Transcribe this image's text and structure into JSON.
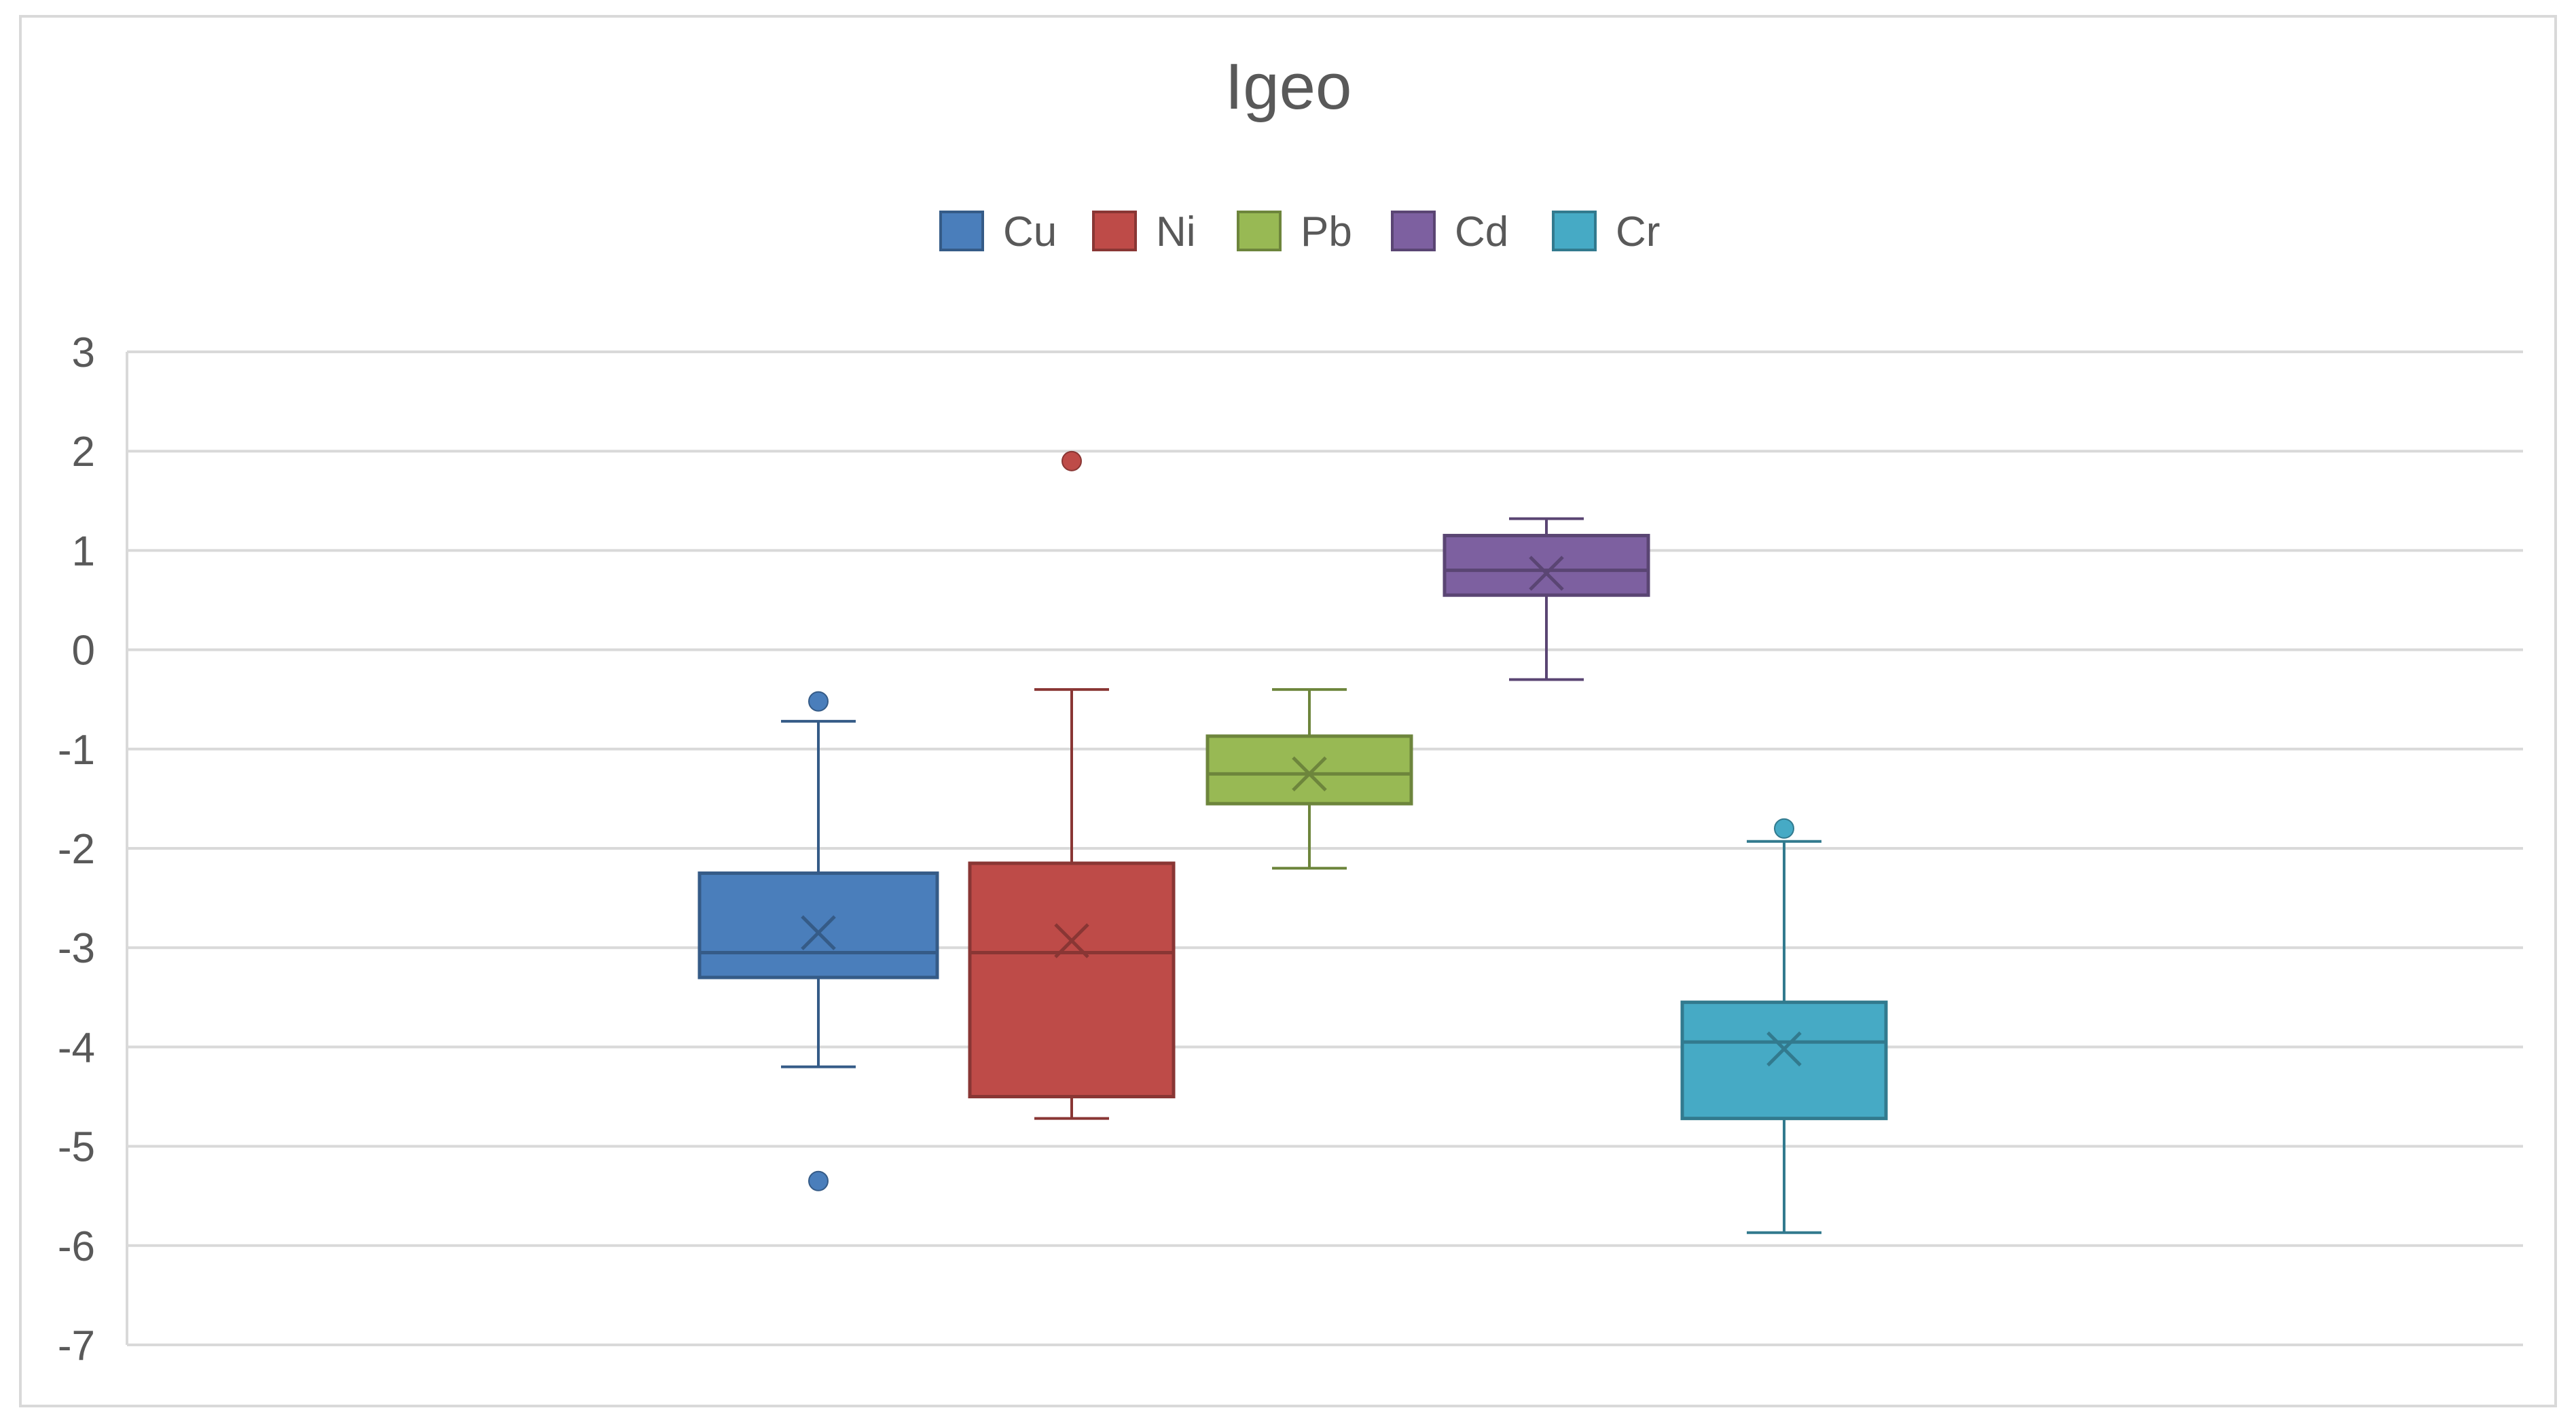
{
  "chart_data": {
    "type": "box",
    "title": "Igeo",
    "xlabel": "",
    "ylabel": "",
    "ylim": [
      -7,
      3
    ],
    "yticks": [
      "3",
      "2",
      "1",
      "0",
      "-1",
      "-2",
      "-3",
      "-4",
      "-5",
      "-6",
      "-7"
    ],
    "grid": true,
    "legend_position": "top",
    "series": [
      {
        "name": "Cu",
        "color": "#4a7ebb",
        "q1": -3.3,
        "median": -3.05,
        "q3": -2.25,
        "mean": -2.85,
        "whisker_low": -4.2,
        "whisker_high": -0.72,
        "outliers": [
          -0.52,
          -5.35
        ]
      },
      {
        "name": "Ni",
        "color": "#be4b48",
        "q1": -4.5,
        "median": -3.05,
        "q3": -2.15,
        "mean": -2.93,
        "whisker_low": -4.72,
        "whisker_high": -0.4,
        "outliers": [
          1.9
        ]
      },
      {
        "name": "Pb",
        "color": "#98b954",
        "q1": -1.55,
        "median": -1.25,
        "q3": -0.87,
        "mean": -1.25,
        "whisker_low": -2.2,
        "whisker_high": -0.4,
        "outliers": []
      },
      {
        "name": "Cd",
        "color": "#7d60a0",
        "q1": 0.55,
        "median": 0.8,
        "q3": 1.15,
        "mean": 0.77,
        "whisker_low": -0.3,
        "whisker_high": 1.32,
        "outliers": []
      },
      {
        "name": "Cr",
        "color": "#46aac5",
        "q1": -4.72,
        "median": -3.95,
        "q3": -3.55,
        "mean": -4.02,
        "whisker_low": -5.87,
        "whisker_high": -1.93,
        "outliers": [
          -1.8
        ]
      }
    ]
  }
}
